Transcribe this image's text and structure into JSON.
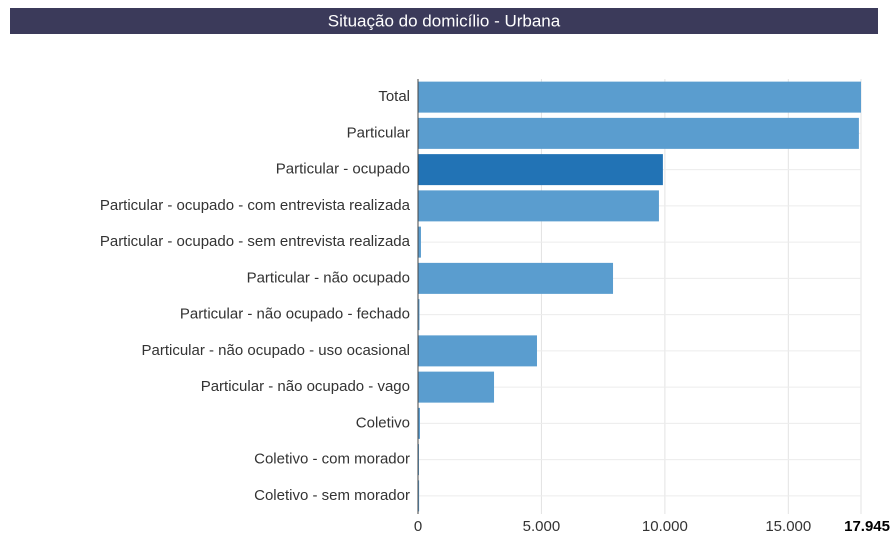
{
  "chart_data": {
    "type": "bar",
    "orientation": "horizontal",
    "title": "Situação do domicílio - Urbana",
    "categories": [
      "Total",
      "Particular",
      "Particular - ocupado",
      "Particular - ocupado - com entrevista realizada",
      "Particular - ocupado - sem entrevista realizada",
      "Particular - não ocupado",
      "Particular - não ocupado - fechado",
      "Particular - não ocupado - uso ocasional",
      "Particular - não ocupado - vago",
      "Coletivo",
      "Coletivo - com morador",
      "Coletivo - sem morador"
    ],
    "values": [
      17945,
      17860,
      9920,
      9760,
      120,
      7900,
      60,
      4820,
      3080,
      80,
      40,
      45
    ],
    "colors": [
      "#5a9dcf",
      "#5a9dcf",
      "#2273b5",
      "#5a9dcf",
      "#5a9dcf",
      "#5a9dcf",
      "#5a9dcf",
      "#5a9dcf",
      "#5a9dcf",
      "#5a9dcf",
      "#5a9dcf",
      "#5a9dcf"
    ],
    "xlim": [
      0,
      17945
    ],
    "xticks": [
      0,
      {
        "value": 5000,
        "label": "5.000"
      },
      {
        "value": 10000,
        "label": "10.000"
      },
      {
        "value": 15000,
        "label": "15.000"
      },
      {
        "value": 17945,
        "label": "17.945"
      }
    ],
    "grid": true
  }
}
